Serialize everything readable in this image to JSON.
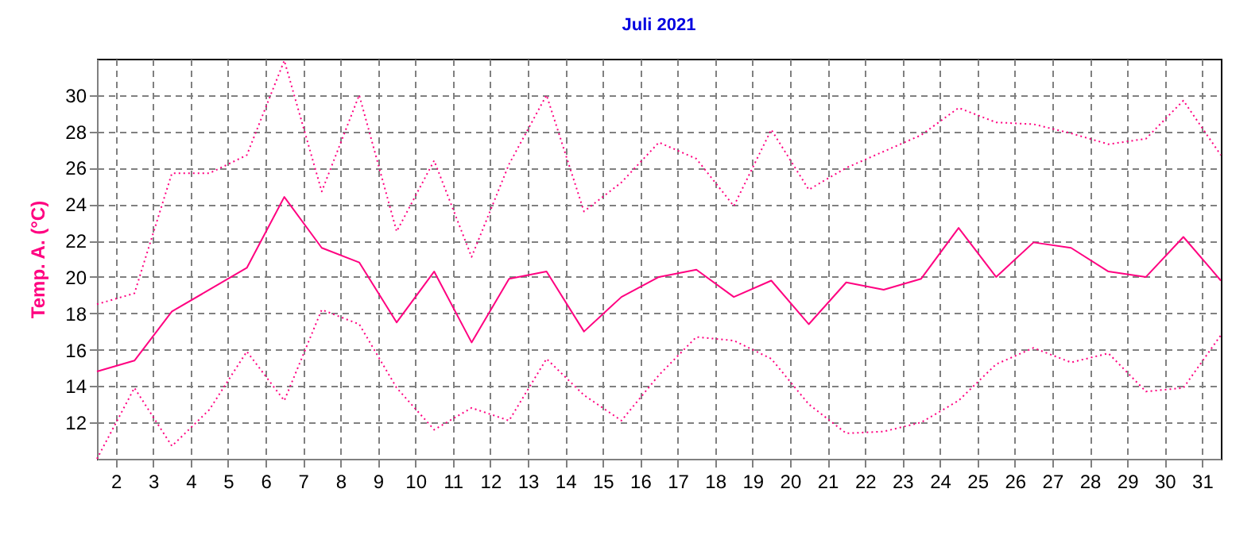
{
  "chart_data": {
    "type": "line",
    "title": "Juli 2021",
    "ylabel": "Temp. A. (°C)",
    "x": [
      1.5,
      2.5,
      3.5,
      4.5,
      5.5,
      6.5,
      7.5,
      8.5,
      9.5,
      10.5,
      11.5,
      12.5,
      13.5,
      14.5,
      15.5,
      16.5,
      17.5,
      18.5,
      19.5,
      20.5,
      21.5,
      22.5,
      23.5,
      24.5,
      25.5,
      26.5,
      27.5,
      28.5,
      29.5,
      30.5,
      31.5
    ],
    "series": [
      {
        "color": "#ff0080",
        "line_style": "dotted",
        "values": [
          18.5,
          19.1,
          25.7,
          25.7,
          26.7,
          31.9,
          24.7,
          30.0,
          22.5,
          26.4,
          21.1,
          26.2,
          30.0,
          23.6,
          25.2,
          27.4,
          26.5,
          23.9,
          28.1,
          24.8,
          26.0,
          26.9,
          27.8,
          29.3,
          28.5,
          28.4,
          27.9,
          27.3,
          27.6,
          29.7,
          26.7
        ]
      },
      {
        "color": "#ff0080",
        "line_style": "solid",
        "values": [
          14.8,
          15.4,
          18.1,
          19.3,
          20.5,
          24.4,
          21.6,
          20.8,
          17.5,
          20.3,
          16.4,
          19.9,
          20.3,
          17.0,
          18.9,
          20.0,
          20.4,
          18.9,
          19.8,
          17.4,
          19.7,
          19.3,
          19.9,
          22.7,
          20.0,
          21.9,
          21.6,
          20.3,
          20.0,
          22.2,
          19.8
        ]
      },
      {
        "color": "#ff0080",
        "line_style": "dotted",
        "values": [
          10.0,
          13.9,
          10.7,
          12.7,
          15.9,
          13.2,
          18.2,
          17.4,
          13.9,
          11.6,
          12.8,
          12.1,
          15.5,
          13.5,
          12.1,
          14.6,
          16.7,
          16.5,
          15.5,
          13.0,
          11.4,
          11.5,
          12.0,
          13.2,
          15.2,
          16.1,
          15.3,
          15.8,
          13.7,
          13.9,
          16.8
        ]
      }
    ],
    "xlim": [
      1.5,
      31.5
    ],
    "xticks": [
      2,
      3,
      4,
      5,
      6,
      7,
      8,
      9,
      10,
      11,
      12,
      13,
      14,
      15,
      16,
      17,
      18,
      19,
      20,
      21,
      22,
      23,
      24,
      25,
      26,
      27,
      28,
      29,
      30,
      31
    ],
    "ylim": [
      10,
      32
    ],
    "yticks": [
      12,
      14,
      16,
      18,
      20,
      22,
      24,
      26,
      28,
      30
    ],
    "grid": true,
    "marker": "none"
  }
}
